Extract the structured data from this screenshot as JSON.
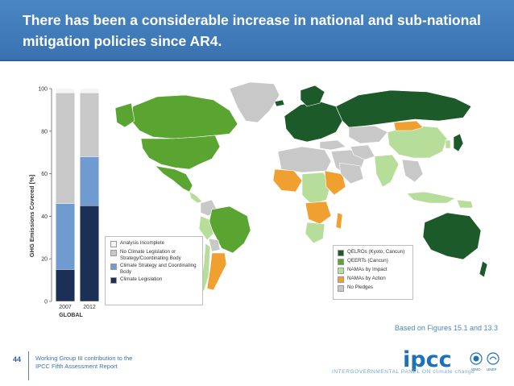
{
  "slide": {
    "title": "There has been a considerable increase in national and sub-national mitigation policies since AR4.",
    "page_number": "44",
    "footer_line1": "Working Group III contribution to the",
    "footer_line2": "IPCC Fifth Assessment Report",
    "source_note": "Based on Figures 15.1 and 13.3",
    "logo_text": "ipcc",
    "logo_tagline": "INTERGOVERNMENTAL PANEL ON climate change",
    "wmo_label": "WMO",
    "unep_label": "UNEP"
  },
  "colors": {
    "title_band": "#4a86c5",
    "analysis_incomplete": "#f4f4f4",
    "no_climate_legislation": "#c8c8c8",
    "climate_strategy": "#6f9bd1",
    "climate_legislation": "#1c2f57",
    "qelros": "#1d5a2a",
    "qeerts": "#5aa532",
    "namas_impact": "#b7dd9a",
    "namas_action": "#f0a030",
    "no_pledges": "#c8c8c8",
    "ocean": "#ffffff"
  },
  "chart_data": [
    {
      "type": "bar",
      "stacked": true,
      "categories": [
        "2007",
        "2012"
      ],
      "xlabel": "GLOBAL",
      "ylabel": "GHG Emissions Covered [%]",
      "ylim": [
        0,
        100
      ],
      "yticks": [
        "0",
        "20",
        "40",
        "60",
        "80",
        "100"
      ],
      "series": [
        {
          "name": "Climate Legislation",
          "color": "#1c2f57",
          "values": [
            15,
            45
          ]
        },
        {
          "name": "Climate Strategy and Coordinating Body",
          "color": "#6f9bd1",
          "values": [
            31,
            23
          ]
        },
        {
          "name": "No Climate Legislation or Strategy/Coordinating Body",
          "color": "#c8c8c8",
          "values": [
            52,
            30
          ]
        },
        {
          "name": "Analysis Incomplete",
          "color": "#f4f4f4",
          "values": [
            2,
            2
          ]
        }
      ]
    },
    {
      "type": "map",
      "legend": [
        {
          "name": "QELROs (Kyoto, Cancun)",
          "color": "#1d5a2a"
        },
        {
          "name": "QEERTs (Cancun)",
          "color": "#5aa532"
        },
        {
          "name": "NAMAs by Impact",
          "color": "#b7dd9a"
        },
        {
          "name": "NAMAs by Action",
          "color": "#f0a030"
        },
        {
          "name": "No Pledges",
          "color": "#c8c8c8"
        }
      ]
    }
  ],
  "legend_left": [
    {
      "label": "Analysis Incomplete",
      "color": "#f4f4f4"
    },
    {
      "label": "No Climate Legislation or Strategy/Coordinating Body",
      "color": "#c8c8c8"
    },
    {
      "label": "Climate Strategy and Coordinating Body",
      "color": "#6f9bd1"
    },
    {
      "label": "Climate Legislation",
      "color": "#1c2f57"
    }
  ],
  "legend_right": [
    {
      "label": "QELROs (Kyoto, Cancun)",
      "color": "#1d5a2a"
    },
    {
      "label": "QEERTs (Cancun)",
      "color": "#5aa532"
    },
    {
      "label": "NAMAs by Impact",
      "color": "#b7dd9a"
    },
    {
      "label": "NAMAs by Action",
      "color": "#f0a030"
    },
    {
      "label": "No Pledges",
      "color": "#c8c8c8"
    }
  ]
}
